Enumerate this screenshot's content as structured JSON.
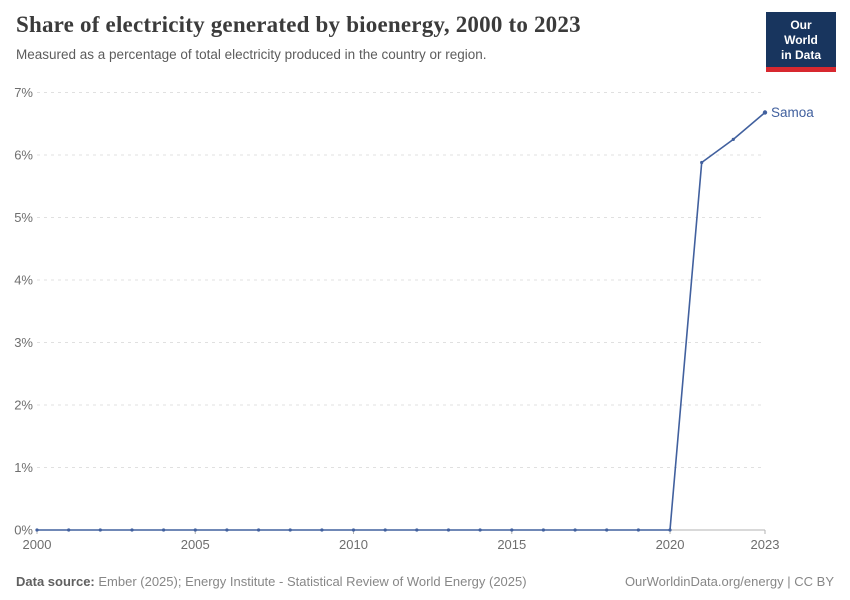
{
  "header": {
    "title": "Share of electricity generated by bioenergy, 2000 to 2023",
    "subtitle": "Measured as a percentage of total electricity produced in the country or region.",
    "logo": {
      "line1": "Our World",
      "line2": "in Data"
    }
  },
  "footer": {
    "source_label": "Data source:",
    "source_text": " Ember (2025); Energy Institute - Statistical Review of World Energy (2025)",
    "link_text": "OurWorldinData.org/energy | CC BY"
  },
  "chart_data": {
    "type": "line",
    "title": "Share of electricity generated by bioenergy, 2000 to 2023",
    "subtitle": "Measured as a percentage of total electricity produced in the country or region.",
    "xlabel": "",
    "ylabel": "",
    "xlim": [
      2000,
      2023
    ],
    "ylim": [
      0,
      7
    ],
    "xticks": [
      2000,
      2005,
      2010,
      2015,
      2020,
      2023
    ],
    "yticks": [
      0,
      1,
      2,
      3,
      4,
      5,
      6,
      7
    ],
    "ytick_suffix": "%",
    "grid": "horizontal-dashed",
    "legend_position": "end-of-line-label",
    "x": [
      2000,
      2001,
      2002,
      2003,
      2004,
      2005,
      2006,
      2007,
      2008,
      2009,
      2010,
      2011,
      2012,
      2013,
      2014,
      2015,
      2016,
      2017,
      2018,
      2019,
      2020,
      2021,
      2022,
      2023
    ],
    "series": [
      {
        "name": "Samoa",
        "color": "#41609e",
        "values": [
          0,
          0,
          0,
          0,
          0,
          0,
          0,
          0,
          0,
          0,
          0,
          0,
          0,
          0,
          0,
          0,
          0,
          0,
          0,
          0,
          0,
          5.88,
          6.25,
          6.68
        ]
      }
    ],
    "colors": {
      "grid": "#e0e0e0",
      "axis": "#b3b3b3",
      "tick_label": "#6e6e6e"
    }
  }
}
